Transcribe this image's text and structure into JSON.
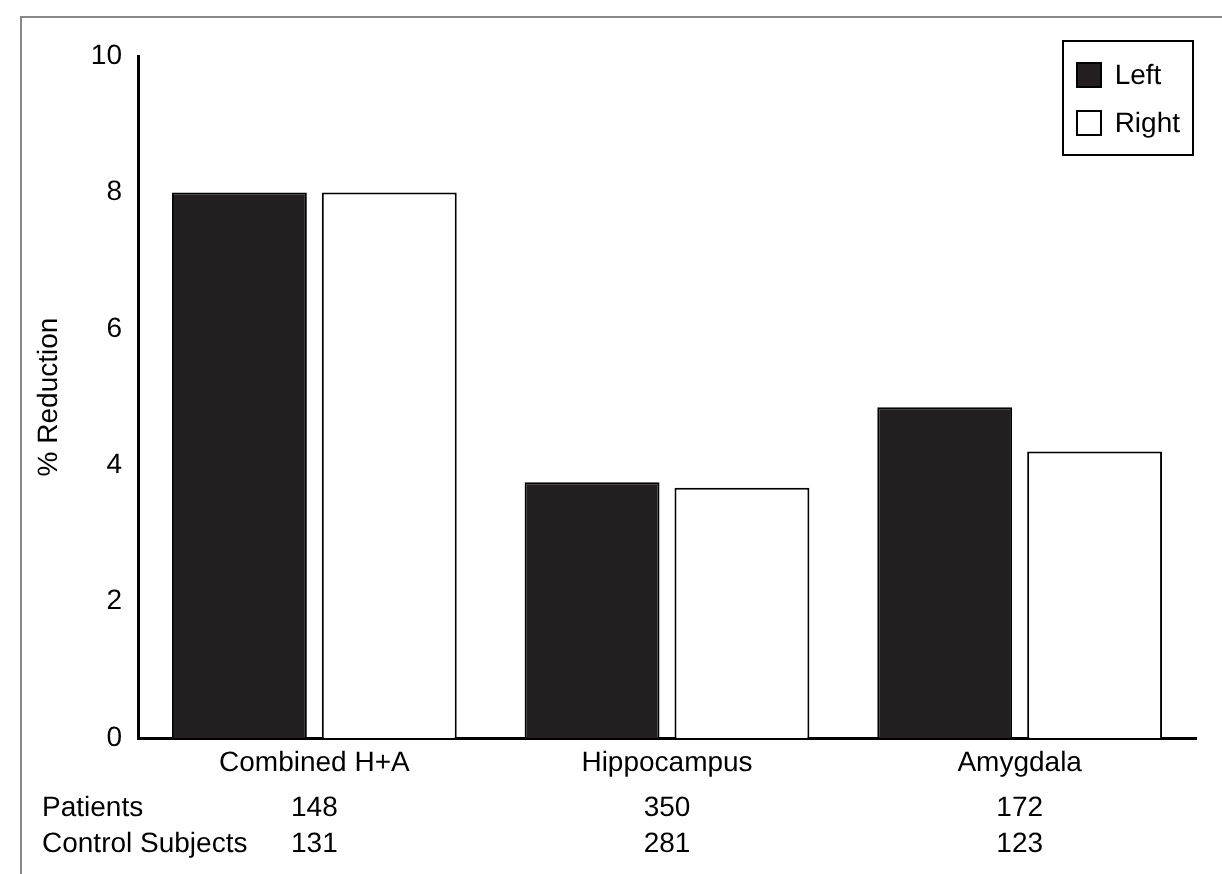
{
  "chart_data": {
    "type": "bar",
    "ylabel": "% Reduction",
    "categories": [
      "Combined H+A",
      "Hippocampus",
      "Amygdala"
    ],
    "series": [
      {
        "name": "Left",
        "color": "#231f20",
        "values": [
          8.0,
          3.75,
          4.85
        ]
      },
      {
        "name": "Right",
        "color": "#ffffff",
        "values": [
          8.0,
          3.67,
          4.2
        ]
      }
    ],
    "ylim": [
      0,
      10
    ],
    "yticks": [
      0,
      2,
      4,
      6,
      8,
      10
    ],
    "grid": false,
    "legend": "top right",
    "annotations": [
      "Patients",
      "148",
      "350",
      "172",
      "Control Subjects",
      "131",
      "281",
      "123"
    ]
  }
}
